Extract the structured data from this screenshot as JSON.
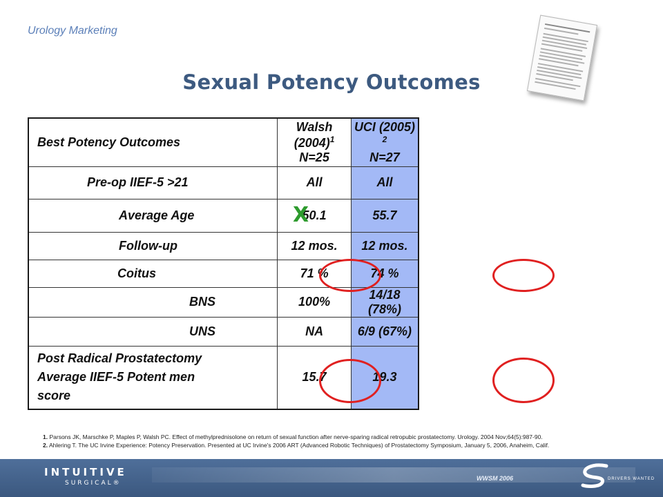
{
  "header": {
    "brand": "Urology Marketing",
    "title": "Sexual Potency Outcomes"
  },
  "table": {
    "col1_header": "Best Potency Outcomes",
    "walsh_header": "Walsh (2004)",
    "walsh_sup": "1",
    "walsh_n": "N=25",
    "uci_header": "UCI (2005)",
    "uci_sup": "2",
    "uci_n": "N=27",
    "rows": [
      {
        "label": "Pre-op IIEF-5 >21",
        "walsh": "All",
        "uci": "All"
      },
      {
        "label": "Average Age",
        "walsh": "50.1",
        "uci": "55.7"
      },
      {
        "label": "Follow-up",
        "walsh": "12 mos.",
        "uci": "12 mos."
      },
      {
        "label": "Coitus",
        "walsh": "71 %",
        "uci": "74 %"
      },
      {
        "label": "BNS",
        "walsh": "100%",
        "uci": "14/18 (78%)"
      },
      {
        "label": "UNS",
        "walsh": "NA",
        "uci": "6/9 (67%)"
      }
    ],
    "last_row": {
      "label_line1": "Post Radical Prostatectomy",
      "label_line2": "Average IIEF-5 Potent men",
      "label_line3": "score",
      "walsh": "15.7",
      "uci": "19.3"
    }
  },
  "annotation": {
    "x_mark": "X"
  },
  "references": {
    "ref1_num": "1.",
    "ref1_text": "Parsons JK, Marschke P, Maples P, Walsh PC. Effect of methylprednisolone on return of sexual function after nerve-sparing radical retropubic prostatectomy. Urology. 2004 Nov;64(5):987-90.",
    "ref2_num": "2.",
    "ref2_text": "Ahlering T. The UC Irvine Experience: Potency Preservation. Presented at UC Irvine's 2006 ART (Advanced Robotic Techniques) of Prostatectomy Symposium, January 5, 2006, Anaheim, Calif."
  },
  "footer": {
    "logo_main": "INTUITIVE",
    "logo_sub": "SURGICAL®",
    "event": "WWSM 2006",
    "tagline": "DRIVERS WANTED"
  },
  "colors": {
    "accent_blue": "#3d5a80",
    "uci_column": "#a3b9f6",
    "circle_red": "#e02020",
    "x_green": "#2e9b2e",
    "footer_bg": "#4f6f9a"
  }
}
